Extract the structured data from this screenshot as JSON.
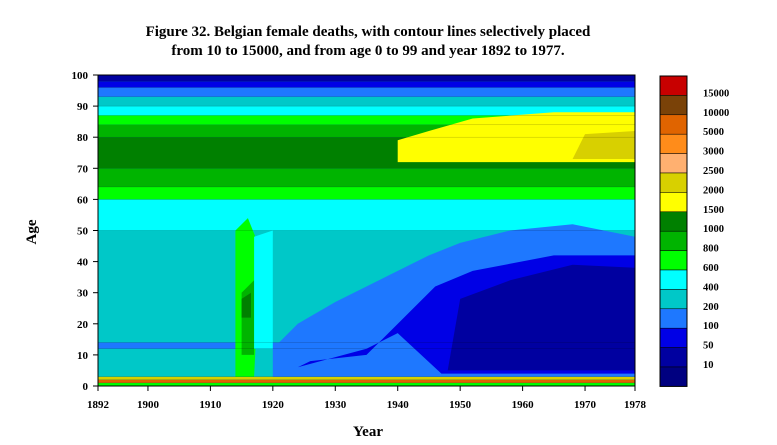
{
  "chart_data": {
    "type": "heatmap",
    "title_line1": "Figure 32. Belgian female deaths, with contour lines selectively placed",
    "title_line2": "from 10 to 15000, and from age 0 to 99 and year 1892 to 1977.",
    "xlabel": "Year",
    "ylabel": "Age",
    "xlim": [
      1892,
      1978
    ],
    "ylim": [
      0,
      100
    ],
    "x_ticks": [
      1892,
      1900,
      1910,
      1920,
      1930,
      1940,
      1950,
      1960,
      1970,
      1978
    ],
    "y_ticks": [
      0,
      10,
      20,
      30,
      40,
      50,
      60,
      70,
      80,
      90,
      100
    ],
    "legend": {
      "levels": [
        {
          "label": "15000",
          "color": "#c80000"
        },
        {
          "label": "10000",
          "color": "#7a4208"
        },
        {
          "label": "5000",
          "color": "#e06400"
        },
        {
          "label": "3000",
          "color": "#ff8c1a"
        },
        {
          "label": "2500",
          "color": "#ffb070"
        },
        {
          "label": "2000",
          "color": "#d8d000"
        },
        {
          "label": "1500",
          "color": "#ffff00"
        },
        {
          "label": "1000",
          "color": "#008000"
        },
        {
          "label": "800",
          "color": "#00b400"
        },
        {
          "label": "600",
          "color": "#00ff00"
        },
        {
          "label": "400",
          "color": "#00ffff"
        },
        {
          "label": "200",
          "color": "#00c8c8"
        },
        {
          "label": "100",
          "color": "#1e78ff"
        },
        {
          "label": "50",
          "color": "#0000e6"
        },
        {
          "label": "10",
          "color": "#0000a0"
        },
        {
          "label": "",
          "color": "#000080"
        }
      ]
    },
    "bands": [
      {
        "level": "600",
        "from_age": 0,
        "to_age": 1
      },
      {
        "level": "5000",
        "from_age": 1,
        "to_age": 2
      },
      {
        "level": "2000",
        "from_age": 2,
        "to_age": 3
      },
      {
        "level": "200",
        "from_age": 3,
        "to_age": 12
      },
      {
        "level": "100",
        "from_age": 12,
        "to_age": 14
      },
      {
        "level": "200",
        "from_age": 14,
        "to_age": 50
      },
      {
        "level": "400",
        "from_age": 50,
        "to_age": 60
      },
      {
        "level": "600",
        "from_age": 60,
        "to_age": 64
      },
      {
        "level": "800",
        "from_age": 64,
        "to_age": 70
      },
      {
        "level": "1000",
        "from_age": 70,
        "to_age": 80
      },
      {
        "level": "800",
        "from_age": 80,
        "to_age": 84
      },
      {
        "level": "600",
        "from_age": 84,
        "to_age": 87
      },
      {
        "level": "400",
        "from_age": 87,
        "to_age": 90
      },
      {
        "level": "200",
        "from_age": 90,
        "to_age": 93
      },
      {
        "level": "100",
        "from_age": 93,
        "to_age": 96
      },
      {
        "level": "50",
        "from_age": 96,
        "to_age": 98
      },
      {
        "level": "10",
        "from_age": 98,
        "to_age": 100
      }
    ],
    "regions": [
      {
        "level": "100",
        "points": [
          [
            1920,
            3
          ],
          [
            1978,
            3
          ],
          [
            1978,
            48
          ],
          [
            1968,
            52
          ],
          [
            1958,
            50
          ],
          [
            1950,
            46
          ],
          [
            1945,
            42
          ],
          [
            1938,
            35
          ],
          [
            1930,
            27
          ],
          [
            1924,
            20
          ],
          [
            1920,
            12
          ]
        ]
      },
      {
        "level": "50",
        "points": [
          [
            1924,
            6
          ],
          [
            1935,
            12
          ],
          [
            1940,
            17
          ],
          [
            1947,
            4
          ],
          [
            1978,
            4
          ],
          [
            1978,
            42
          ],
          [
            1965,
            42
          ],
          [
            1952,
            37
          ],
          [
            1946,
            32
          ],
          [
            1935,
            10
          ],
          [
            1926,
            8
          ]
        ]
      },
      {
        "level": "10",
        "points": [
          [
            1948,
            5
          ],
          [
            1978,
            5
          ],
          [
            1978,
            38
          ],
          [
            1968,
            39
          ],
          [
            1958,
            34
          ],
          [
            1950,
            28
          ]
        ]
      },
      {
        "level": "1500",
        "points": [
          [
            1940,
            72
          ],
          [
            1978,
            72
          ],
          [
            1978,
            88
          ],
          [
            1965,
            88
          ],
          [
            1952,
            86
          ],
          [
            1945,
            82
          ],
          [
            1940,
            79
          ]
        ]
      },
      {
        "level": "2000",
        "points": [
          [
            1968,
            73
          ],
          [
            1978,
            73
          ],
          [
            1978,
            82
          ],
          [
            1970,
            81
          ]
        ]
      },
      {
        "level": "600",
        "points": [
          [
            1914,
            3
          ],
          [
            1917,
            3
          ],
          [
            1918,
            44
          ],
          [
            1916,
            54
          ],
          [
            1914,
            50
          ]
        ]
      },
      {
        "level": "800",
        "points": [
          [
            1915,
            10
          ],
          [
            1917,
            10
          ],
          [
            1917,
            34
          ],
          [
            1915,
            30
          ]
        ]
      },
      {
        "level": "1000",
        "points": [
          [
            1915,
            22
          ],
          [
            1916.5,
            22
          ],
          [
            1916.5,
            30
          ],
          [
            1915,
            28
          ]
        ]
      },
      {
        "level": "400",
        "points": [
          [
            1917,
            12
          ],
          [
            1920,
            12
          ],
          [
            1920,
            50
          ],
          [
            1917,
            48
          ]
        ]
      }
    ]
  }
}
